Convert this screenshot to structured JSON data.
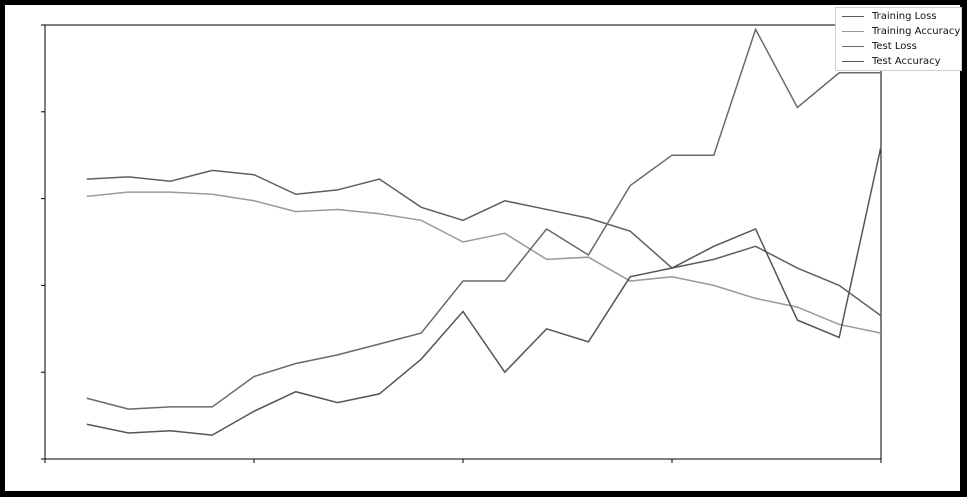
{
  "chart_data": {
    "type": "line",
    "title": "",
    "xlabel": "",
    "ylabel": "",
    "grid": false,
    "legend_position": "top-right",
    "x": [
      1,
      2,
      3,
      4,
      5,
      6,
      7,
      8,
      9,
      10,
      11,
      12,
      13,
      14,
      15,
      16,
      17,
      18,
      19,
      20
    ],
    "xlim": [
      0,
      20
    ],
    "ylim": [
      0,
      1
    ],
    "series": [
      {
        "name": "Training Loss",
        "color": "#5f5f5f",
        "values": [
          0.645,
          0.65,
          0.64,
          0.665,
          0.655,
          0.61,
          0.62,
          0.645,
          0.58,
          0.55,
          0.595,
          0.575,
          0.555,
          0.525,
          0.44,
          0.46,
          0.49,
          0.44,
          0.4,
          0.33
        ]
      },
      {
        "name": "Training Accuracy",
        "color": "#9a9a9a",
        "values": [
          0.605,
          0.615,
          0.615,
          0.61,
          0.595,
          0.57,
          0.575,
          0.565,
          0.55,
          0.5,
          0.52,
          0.46,
          0.465,
          0.41,
          0.42,
          0.4,
          0.37,
          0.35,
          0.31,
          0.29
        ]
      },
      {
        "name": "Test Loss",
        "color": "#6a6a6a",
        "values": [
          0.14,
          0.115,
          0.12,
          0.12,
          0.19,
          0.22,
          0.24,
          0.265,
          0.29,
          0.41,
          0.41,
          0.53,
          0.47,
          0.63,
          0.7,
          0.7,
          0.99,
          0.81,
          0.89,
          0.89
        ]
      },
      {
        "name": "Test Accuracy",
        "color": "#555555",
        "values": [
          0.08,
          0.06,
          0.065,
          0.055,
          0.11,
          0.155,
          0.13,
          0.15,
          0.23,
          0.34,
          0.2,
          0.3,
          0.27,
          0.42,
          0.44,
          0.49,
          0.53,
          0.32,
          0.28,
          0.72
        ]
      }
    ]
  }
}
